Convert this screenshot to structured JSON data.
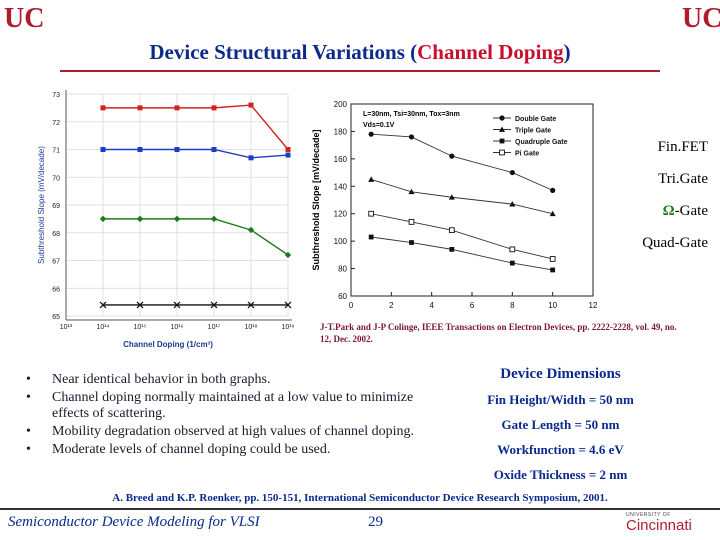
{
  "slide": {
    "title_part1": "Device Structural Variations (",
    "title_part2": "Channel Doping",
    "title_part3": ")",
    "page_number": "29",
    "course": "Semiconductor Device Modeling for VLSI",
    "logo_left": "UC",
    "logo_right": "UC",
    "footer_logo_small": "UNIVERSITY OF",
    "footer_logo_big": "Cincinnati"
  },
  "device_legend": [
    "Fin.FET",
    "Tri.Gate",
    "-Gate",
    "Quad-Gate"
  ],
  "device_legend_omega": "Ω",
  "citation": "J-T.Park and J-P Colinge, IEEE Transactions on Electron Devices, pp. 2222-2228, vol. 49, no. 12, Dec. 2002.",
  "bullets": [
    "Near identical behavior in both graphs.",
    "Channel doping normally maintained at a low value to minimize effects of scattering.",
    "Mobility degradation observed at high values of channel doping.",
    "Moderate levels of channel doping could be used."
  ],
  "bullet_char": "•",
  "dimensions": {
    "title": "Device Dimensions",
    "items": [
      "Fin Height/Width = 50 nm",
      "Gate Length = 50 nm",
      "Workfunction = 4.6 eV",
      "Oxide Thickness = 2 nm"
    ]
  },
  "reference": "A. Breed and K.P. Roenker, pp. 150-151, International Semiconductor Device Research Symposium, 2001.",
  "colors": {
    "red": "#d42020",
    "blue": "#1a3cc8",
    "green": "#1f7a1f",
    "black": "#111111",
    "title_blue": "#0a2a8c",
    "accent": "#b01c2e"
  },
  "chart_data": [
    {
      "type": "line",
      "xscale": "log",
      "xlabel": "Channel Doping (1/cm³)",
      "ylabel": "Subthreshold Slope (mV/decade)",
      "xtick_labels": [
        "10¹³",
        "10¹⁴",
        "10¹⁵",
        "10¹⁶",
        "10¹⁷",
        "10¹⁸",
        "10¹⁹"
      ],
      "xticks": [
        13,
        14,
        15,
        16,
        17,
        18,
        19
      ],
      "yticks": [
        65,
        66,
        67,
        68,
        69,
        70,
        71,
        72,
        73
      ],
      "ylim": [
        65,
        73
      ],
      "xlim": [
        13,
        19
      ],
      "series": [
        {
          "name": "Fin.FET",
          "color": "#d42020",
          "marker": "square",
          "x": [
            14,
            15,
            16,
            17,
            18,
            19
          ],
          "y": [
            72.5,
            72.5,
            72.5,
            72.5,
            72.6,
            71.0
          ]
        },
        {
          "name": "Tri.Gate",
          "color": "#1a3cc8",
          "marker": "square",
          "x": [
            14,
            15,
            16,
            17,
            18,
            19
          ],
          "y": [
            71.0,
            71.0,
            71.0,
            71.0,
            70.7,
            70.8
          ]
        },
        {
          "name": "Ω-Gate",
          "color": "#1f7a1f",
          "marker": "diamond",
          "x": [
            14,
            15,
            16,
            17,
            18,
            19
          ],
          "y": [
            68.5,
            68.5,
            68.5,
            68.5,
            68.1,
            67.2
          ]
        },
        {
          "name": "Quad-Gate",
          "color": "#111111",
          "marker": "x",
          "x": [
            14,
            15,
            16,
            17,
            18,
            19
          ],
          "y": [
            65.4,
            65.4,
            65.4,
            65.4,
            65.4,
            65.4
          ]
        }
      ]
    },
    {
      "type": "line",
      "xlabel": "",
      "ylabel": "Subthreshold Slope [mV/decade]",
      "annotation": [
        "L=30nm, Tsi=30nm, Tox=3nm",
        "Vds=0.1V"
      ],
      "xticks": [
        0,
        2,
        4,
        6,
        8,
        10,
        12
      ],
      "yticks": [
        60,
        80,
        100,
        120,
        140,
        160,
        180,
        200
      ],
      "xlim": [
        0,
        12
      ],
      "ylim": [
        60,
        200
      ],
      "series": [
        {
          "name": "Double Gate",
          "marker": "filled-circle",
          "x": [
            1,
            3,
            5,
            8,
            10
          ],
          "y": [
            178,
            176,
            162,
            150,
            137
          ]
        },
        {
          "name": "Triple Gate",
          "marker": "filled-triangle",
          "x": [
            1,
            3,
            5,
            8,
            10
          ],
          "y": [
            145,
            136,
            132,
            127,
            120
          ]
        },
        {
          "name": "Quadruple Gate",
          "marker": "filled-square",
          "x": [
            1,
            3,
            5,
            8,
            10
          ],
          "y": [
            103,
            99,
            94,
            84,
            79
          ]
        },
        {
          "name": "Pi Gate",
          "marker": "open-square",
          "x": [
            1,
            3,
            5,
            8,
            10
          ],
          "y": [
            120,
            114,
            108,
            94,
            87
          ]
        }
      ]
    }
  ]
}
